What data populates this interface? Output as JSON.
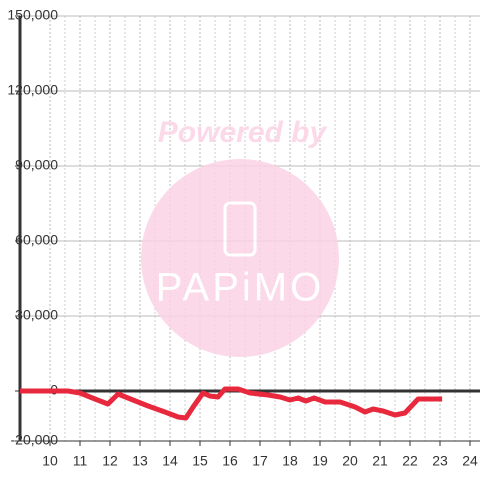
{
  "chart_data": {
    "type": "line",
    "watermark": {
      "title": "Powered by",
      "brand": "PAPiMO"
    },
    "x": [
      9,
      10.6,
      11.0,
      11.5,
      11.93,
      12.27,
      12.6,
      13.27,
      13.83,
      14.27,
      14.53,
      14.77,
      15.1,
      15.33,
      15.6,
      15.83,
      16.27,
      16.67,
      17.27,
      17.67,
      18.0,
      18.27,
      18.53,
      18.8,
      19.17,
      19.67,
      20.17,
      20.5,
      20.77,
      21.1,
      21.5,
      21.83,
      22.27,
      23.07
    ],
    "series": [
      {
        "color": "#e8283c",
        "values": [
          0,
          0,
          -800,
          -3200,
          -5200,
          -1200,
          -2800,
          -6000,
          -8400,
          -10400,
          -10800,
          -6400,
          -800,
          -2000,
          -2400,
          800,
          800,
          -800,
          -1600,
          -2400,
          -3600,
          -2800,
          -4000,
          -2800,
          -4400,
          -4400,
          -6400,
          -8400,
          -7200,
          -8000,
          -9600,
          -8800,
          -3200,
          -3200
        ]
      }
    ],
    "xlim": [
      9,
      24.333
    ],
    "xticks": [
      10,
      11,
      12,
      13,
      14,
      15,
      16,
      17,
      18,
      19,
      20,
      21,
      22,
      23,
      24
    ],
    "ylim": [
      -20000,
      150000
    ],
    "yticks": [
      {
        "value": -20000,
        "label": "-20,000"
      },
      0,
      {
        "value": 30000,
        "label": "30,000"
      },
      {
        "value": 60000,
        "label": "60,000"
      },
      {
        "value": 90000,
        "label": "90,000"
      },
      {
        "value": 120000,
        "label": "120,000"
      },
      {
        "value": 150000,
        "label": "150,000"
      }
    ],
    "grid": true
  }
}
